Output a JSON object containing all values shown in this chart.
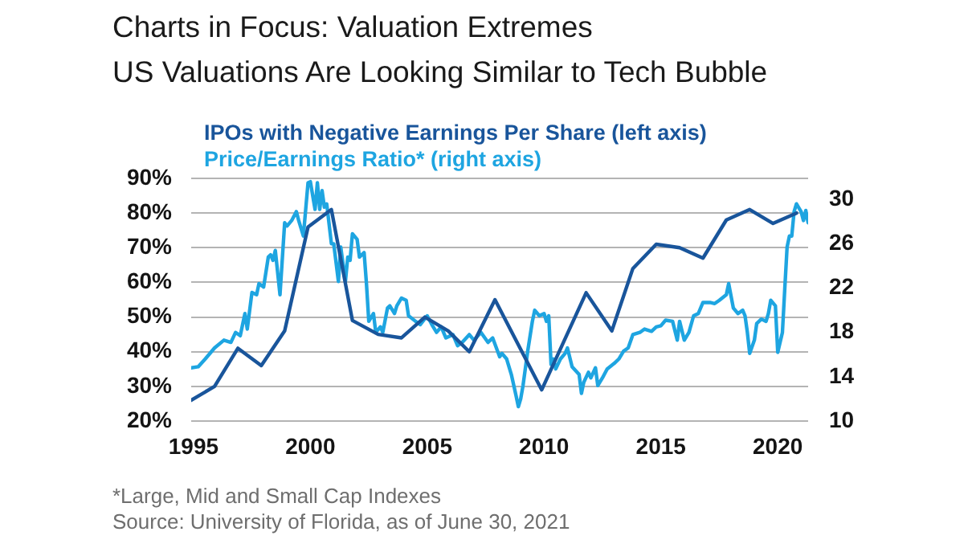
{
  "chart_data": {
    "type": "line",
    "title": "Charts in Focus: Valuation Extremes",
    "subtitle": "US Valuations Are Looking Similar to Tech Bubble",
    "xlim": [
      1994.9,
      2021.3
    ],
    "xticks": [
      1995,
      2000,
      2005,
      2010,
      2015,
      2020
    ],
    "ylim": [
      20,
      90
    ],
    "yticks": [
      {
        "value": 20,
        "label": "20%"
      },
      {
        "value": 30,
        "label": "30%"
      },
      {
        "value": 40,
        "label": "40%"
      },
      {
        "value": 50,
        "label": "50%"
      },
      {
        "value": 60,
        "label": "60%"
      },
      {
        "value": 70,
        "label": "70%"
      },
      {
        "value": 80,
        "label": "80%"
      },
      {
        "value": 90,
        "label": "90%"
      }
    ],
    "y2lim": [
      10,
      31.9
    ],
    "y2ticks": [
      10,
      14,
      18,
      22,
      26,
      30
    ],
    "grid": "y",
    "legend": "top left",
    "marker": "none",
    "line_style": "solid",
    "series": [
      {
        "name": "IPOs with Negative Earnings Per Share (left axis)",
        "color": "#19559b",
        "x": [
          1994.9,
          1995.9,
          1996.9,
          1997.9,
          1998.9,
          1999.9,
          2000.9,
          2001.8,
          2002.9,
          2003.9,
          2004.9,
          2005.9,
          2006.8,
          2007.9,
          2009.9,
          2011.8,
          2012.9,
          2013.8,
          2014.8,
          2015.8,
          2016.8,
          2017.8,
          2018.8,
          2019.8,
          2020.8
        ],
        "values": [
          26,
          30,
          41,
          36,
          46,
          76,
          81,
          49,
          45,
          44,
          50,
          46,
          40,
          55,
          29,
          57,
          46,
          64,
          71,
          70,
          67,
          78,
          81,
          77,
          80
        ]
      },
      {
        "name": "Price/Earnings Ratio* (right axis)",
        "color": "#1ea5e1",
        "axis": "y2",
        "x": [
          1994.9,
          1995.2,
          1995.5,
          1995.9,
          1996.3,
          1996.6,
          1996.8,
          1997.0,
          1997.2,
          1997.3,
          1997.5,
          1997.7,
          1997.8,
          1998.0,
          1998.2,
          1998.3,
          1998.4,
          1998.5,
          1998.7,
          1998.9,
          1999.0,
          1999.2,
          1999.4,
          1999.5,
          1999.7,
          1999.9,
          2000.0,
          2000.2,
          2000.3,
          2000.4,
          2000.5,
          2000.6,
          2000.7,
          2000.9,
          2001.0,
          2001.2,
          2001.3,
          2001.5,
          2001.6,
          2001.7,
          2001.8,
          2002.0,
          2002.1,
          2002.3,
          2002.4,
          2002.5,
          2002.7,
          2002.8,
          2003.0,
          2003.1,
          2003.3,
          2003.4,
          2003.6,
          2003.7,
          2003.9,
          2004.1,
          2004.2,
          2004.5,
          2004.7,
          2005.0,
          2005.2,
          2005.4,
          2005.6,
          2005.8,
          2006.1,
          2006.3,
          2006.5,
          2006.8,
          2007.0,
          2007.3,
          2007.6,
          2007.8,
          2008.1,
          2008.2,
          2008.4,
          2008.6,
          2008.8,
          2008.9,
          2009.0,
          2009.1,
          2009.3,
          2009.5,
          2009.6,
          2009.8,
          2010.0,
          2010.1,
          2010.2,
          2010.3,
          2010.4,
          2010.5,
          2010.7,
          2010.9,
          2011.0,
          2011.2,
          2011.5,
          2011.6,
          2011.7,
          2011.9,
          2012.0,
          2012.2,
          2012.3,
          2012.5,
          2012.7,
          2013.0,
          2013.2,
          2013.4,
          2013.6,
          2013.8,
          2014.1,
          2014.3,
          2014.6,
          2014.8,
          2015.0,
          2015.2,
          2015.5,
          2015.7,
          2015.8,
          2016.0,
          2016.2,
          2016.4,
          2016.6,
          2016.8,
          2017.1,
          2017.3,
          2017.5,
          2017.8,
          2017.9,
          2018.1,
          2018.3,
          2018.5,
          2018.6,
          2018.7,
          2018.8,
          2019.0,
          2019.1,
          2019.3,
          2019.5,
          2019.6,
          2019.7,
          2019.9,
          2020.0,
          2020.2,
          2020.3,
          2020.4,
          2020.5,
          2020.6,
          2020.7,
          2020.8,
          2021.0,
          2021.1,
          2021.2,
          2021.3
        ],
        "values": [
          14.8,
          14.9,
          15.6,
          16.6,
          17.3,
          17.1,
          18.0,
          17.7,
          19.7,
          18.3,
          21.6,
          21.4,
          22.4,
          22.1,
          24.8,
          25.0,
          24.5,
          25.4,
          21.4,
          27.9,
          27.6,
          28.1,
          28.9,
          28.1,
          26.7,
          31.5,
          31.6,
          29.1,
          31.5,
          29.1,
          30.8,
          29.3,
          29.6,
          26.0,
          26.0,
          22.6,
          25.7,
          22.6,
          24.8,
          24.5,
          26.9,
          26.4,
          24.8,
          25.2,
          22.4,
          19.0,
          19.7,
          18.0,
          18.5,
          18.0,
          20.2,
          20.4,
          19.7,
          20.4,
          21.1,
          20.9,
          19.5,
          19.0,
          18.7,
          19.5,
          18.7,
          18.0,
          18.5,
          17.5,
          17.8,
          16.8,
          17.1,
          17.8,
          17.3,
          18.0,
          17.1,
          17.5,
          15.8,
          16.1,
          15.6,
          14.2,
          12.3,
          11.3,
          12.0,
          13.2,
          16.3,
          19.0,
          20.0,
          19.5,
          19.7,
          19.0,
          19.5,
          15.1,
          15.6,
          14.7,
          15.6,
          16.1,
          16.6,
          14.9,
          14.2,
          12.5,
          13.5,
          14.4,
          13.9,
          14.8,
          13.2,
          13.9,
          14.7,
          15.2,
          15.6,
          16.3,
          16.6,
          17.8,
          18.0,
          18.3,
          18.1,
          18.5,
          18.6,
          19.1,
          19.0,
          17.3,
          19.0,
          17.3,
          18.0,
          19.5,
          19.7,
          20.7,
          20.7,
          20.6,
          20.9,
          21.4,
          22.4,
          20.2,
          19.7,
          20.0,
          19.5,
          18.0,
          16.1,
          17.3,
          18.8,
          19.2,
          19.0,
          19.7,
          20.9,
          20.4,
          16.2,
          18.0,
          21.9,
          25.7,
          26.7,
          26.7,
          28.9,
          29.6,
          28.9,
          28.1,
          29.0,
          27.9
        ]
      }
    ],
    "annotations": [
      "*Large, Mid and Small Cap Indexes",
      "Source: University of Florida, as of June 30, 2021"
    ]
  }
}
